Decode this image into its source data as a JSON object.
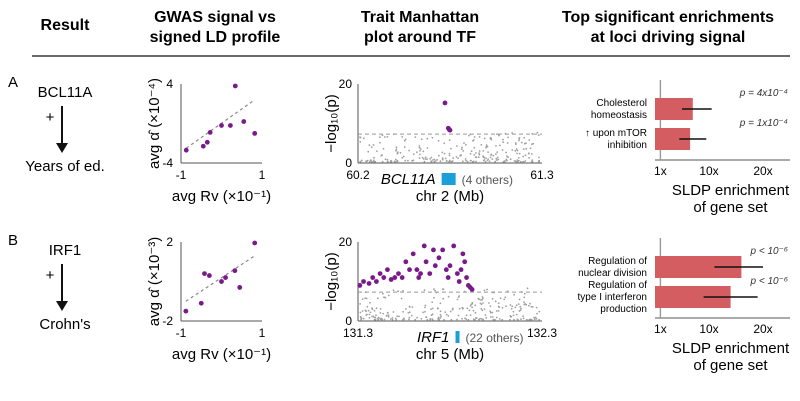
{
  "headers": {
    "result": "Result",
    "gwas_line1": "GWAS signal vs",
    "gwas_line2": "signed LD profile",
    "manhattan_line1": "Trait Manhattan",
    "manhattan_line2": "plot around TF",
    "enrich_line1": "Top significant enrichments",
    "enrich_line2": "at loci driving signal"
  },
  "colors": {
    "purple": "#7a1a8a",
    "gray": "#a0a0a0",
    "bar": "#d45d62",
    "gene": "#1aa0d8"
  },
  "chart_data": [
    {
      "panel": "A",
      "tf": "BCL11A",
      "trait": "Years of ed.",
      "scatter": {
        "type": "scatter",
        "ylabel": "avg α̂ (×10⁻⁴)",
        "xlabel": "avg Rv (×10⁻¹)",
        "xticks": [
          "-1",
          "1"
        ],
        "yticks": [
          "4",
          "-4"
        ],
        "xlim": [
          -1,
          1
        ],
        "ylim": [
          -4,
          4
        ],
        "points": [
          [
            -0.87,
            -2.7
          ],
          [
            -0.45,
            -2.3
          ],
          [
            -0.35,
            -1.9
          ],
          [
            -0.28,
            -0.9
          ],
          [
            0.0,
            -0.2
          ],
          [
            0.22,
            -0.2
          ],
          [
            0.34,
            3.8
          ],
          [
            0.55,
            0.2
          ],
          [
            0.82,
            -1.0
          ]
        ],
        "fit": [
          [
            -0.87,
            -2.5
          ],
          [
            0.82,
            2.4
          ]
        ]
      },
      "manhattan": {
        "type": "scatter",
        "ylabel": "−log₁₀(p)",
        "xlabel": "chr 2 (Mb)",
        "xticks": [
          "60.2",
          "61.3"
        ],
        "yticks": [
          "20",
          "0"
        ],
        "xlim": [
          60.2,
          61.3
        ],
        "ylim": [
          0,
          20
        ],
        "threshold": 7.3,
        "gene": "BCL11A",
        "gene_pos": 60.7,
        "others": "(4 others)",
        "sig_points": [
          [
            60.72,
            15.2
          ],
          [
            60.74,
            8.8
          ],
          [
            60.745,
            8.5
          ],
          [
            60.75,
            8.3
          ]
        ]
      },
      "enrichment": {
        "type": "bar",
        "xlabel_line1": "SLDP enrichment",
        "xlabel_line2": "of gene set",
        "xticks": [
          "1x",
          "10x",
          "20x"
        ],
        "xlim": [
          0,
          25
        ],
        "bars": [
          {
            "label_lines": [
              "Cholesterol",
              "homeostasis"
            ],
            "value": 7,
            "err": [
              5,
              10.5
            ],
            "p": "p = 4x10⁻⁴"
          },
          {
            "label_lines": [
              "↑ upon mTOR",
              "inhibition"
            ],
            "value": 6.5,
            "err": [
              4.5,
              9.5
            ],
            "p": "p = 1x10⁻⁴"
          }
        ]
      }
    },
    {
      "panel": "B",
      "tf": "IRF1",
      "trait": "Crohn's",
      "scatter": {
        "type": "scatter",
        "ylabel": "avg α̂ (×10⁻³)",
        "xlabel": "avg Rv (×10⁻¹)",
        "xticks": [
          "-1",
          "1"
        ],
        "yticks": [
          "2",
          "-2"
        ],
        "xlim": [
          -1,
          1
        ],
        "ylim": [
          -2,
          2
        ],
        "points": [
          [
            -0.88,
            -1.5
          ],
          [
            -0.5,
            -1.1
          ],
          [
            -0.42,
            0.4
          ],
          [
            -0.3,
            0.3
          ],
          [
            0.0,
            0.0
          ],
          [
            0.1,
            0.2
          ],
          [
            0.33,
            0.55
          ],
          [
            0.45,
            -0.3
          ],
          [
            0.82,
            1.95
          ]
        ],
        "fit": [
          [
            -0.88,
            -1.0
          ],
          [
            0.82,
            1.3
          ]
        ]
      },
      "manhattan": {
        "type": "scatter",
        "ylabel": "−log₁₀(p)",
        "xlabel": "chr 5 (Mb)",
        "xticks": [
          "131.3",
          "132.3"
        ],
        "yticks": [
          "20",
          "0"
        ],
        "xlim": [
          131.3,
          132.3
        ],
        "ylim": [
          0,
          20
        ],
        "threshold": 7.3,
        "gene": "IRF1",
        "gene_pos": 131.83,
        "others": "(22 others)",
        "sig_points": [
          [
            131.31,
            9
          ],
          [
            131.33,
            10
          ],
          [
            131.36,
            9.5
          ],
          [
            131.38,
            11
          ],
          [
            131.4,
            10
          ],
          [
            131.42,
            12
          ],
          [
            131.44,
            11
          ],
          [
            131.46,
            13
          ],
          [
            131.48,
            10.5
          ],
          [
            131.5,
            11
          ],
          [
            131.52,
            12
          ],
          [
            131.54,
            11
          ],
          [
            131.56,
            15
          ],
          [
            131.58,
            13
          ],
          [
            131.6,
            17
          ],
          [
            131.62,
            13
          ],
          [
            131.63,
            11
          ],
          [
            131.64,
            12
          ],
          [
            131.66,
            19
          ],
          [
            131.67,
            15
          ],
          [
            131.69,
            12
          ],
          [
            131.71,
            18
          ],
          [
            131.72,
            14
          ],
          [
            131.74,
            16
          ],
          [
            131.76,
            18
          ],
          [
            131.78,
            13
          ],
          [
            131.79,
            11
          ],
          [
            131.8,
            14
          ],
          [
            131.82,
            19
          ],
          [
            131.84,
            12
          ],
          [
            131.85,
            10
          ],
          [
            131.86,
            13
          ],
          [
            131.87,
            17
          ],
          [
            131.88,
            15
          ],
          [
            131.89,
            11
          ],
          [
            131.9,
            9
          ],
          [
            131.91,
            8.5
          ],
          [
            131.92,
            8
          ]
        ]
      },
      "enrichment": {
        "type": "bar",
        "xlabel_line1": "SLDP enrichment",
        "xlabel_line2": "of gene set",
        "xticks": [
          "1x",
          "10x",
          "20x"
        ],
        "xlim": [
          0,
          25
        ],
        "bars": [
          {
            "label_lines": [
              "Regulation of",
              "nuclear division"
            ],
            "value": 16,
            "err": [
              11,
              20
            ],
            "p": "p < 10⁻⁶"
          },
          {
            "label_lines": [
              "Regulation of",
              "type I interferon",
              "production"
            ],
            "value": 14,
            "err": [
              9,
              19
            ],
            "p": "p < 10⁻⁶"
          }
        ]
      }
    }
  ]
}
